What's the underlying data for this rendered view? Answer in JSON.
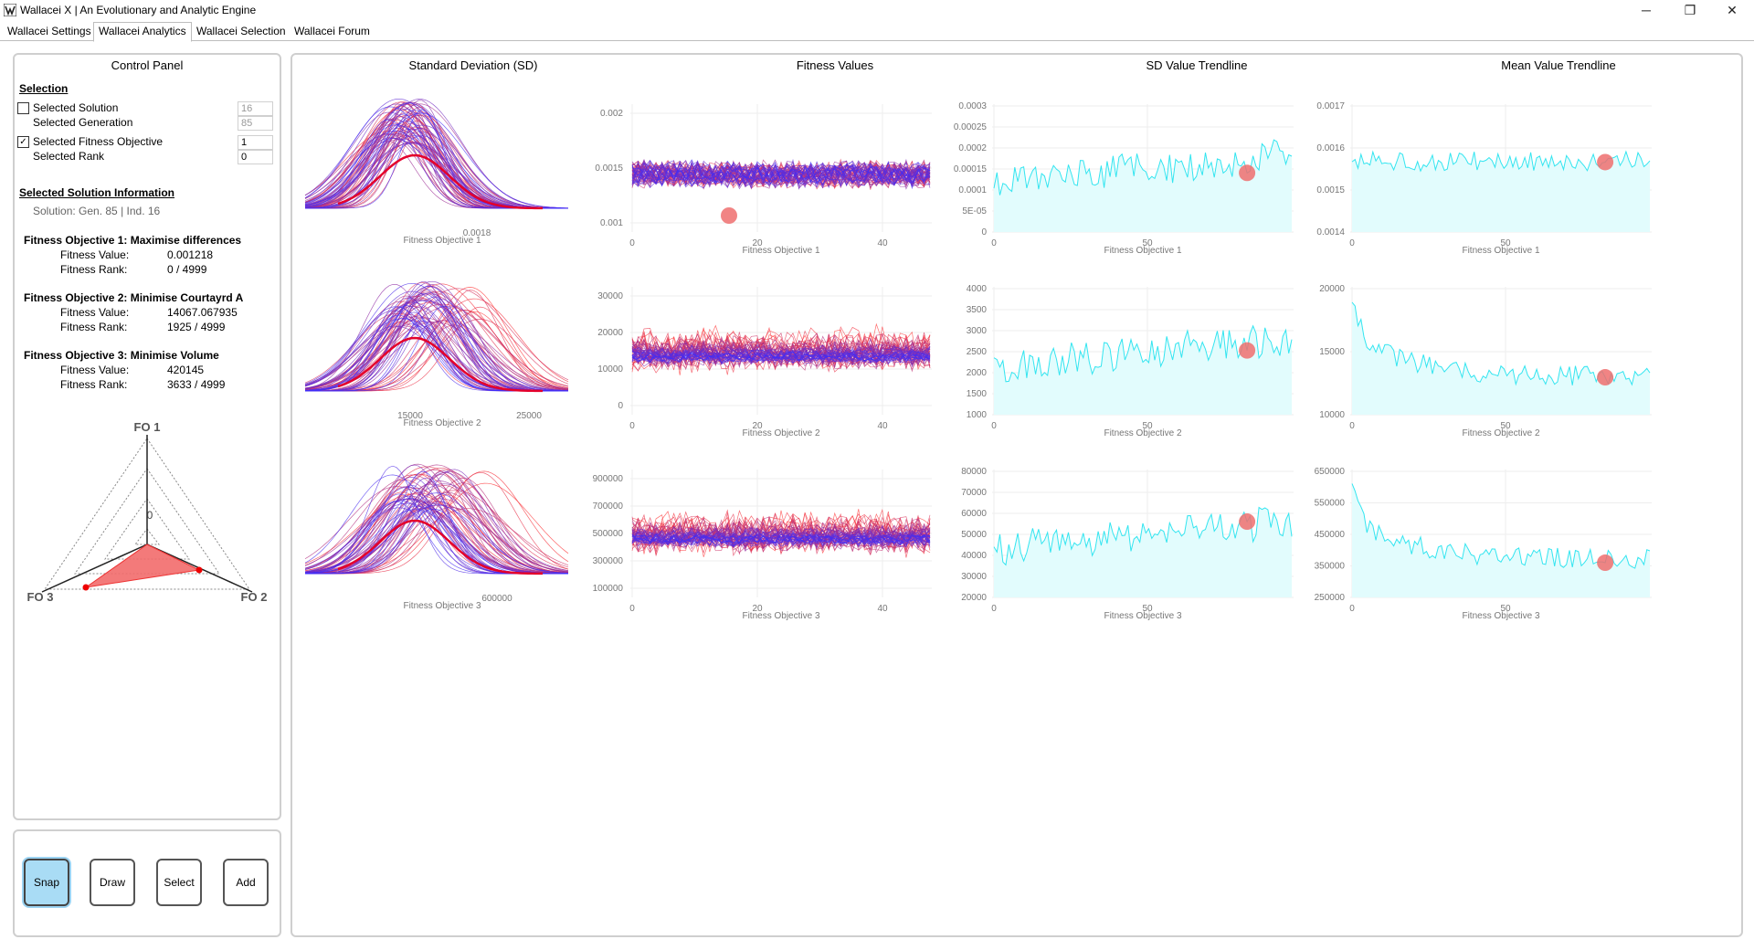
{
  "window": {
    "title": "Wallacei X  |  An Evolutionary and Analytic Engine",
    "minimize": "─",
    "restore": "❐",
    "close": "✕"
  },
  "tabs": [
    {
      "label": "Wallacei Settings"
    },
    {
      "label": "Wallacei Analytics"
    },
    {
      "label": "Wallacei Selection"
    },
    {
      "label": "Wallacei Forum"
    }
  ],
  "control_panel": {
    "title": "Control Panel",
    "selection_heading": "Selection",
    "selected_solution_label": "Selected Solution",
    "selected_solution_value": "16",
    "selected_solution_checked": false,
    "selected_generation_label": "Selected Generation",
    "selected_generation_value": "85",
    "selected_fitness_objective_label": "Selected Fitness Objective",
    "selected_fitness_objective_value": "1",
    "selected_fitness_objective_checked": true,
    "selected_rank_label": "Selected Rank",
    "selected_rank_value": "0",
    "info_heading": "Selected Solution Information",
    "solution_text": "Solution: Gen. 85 | Ind. 16",
    "objectives": [
      {
        "heading": "Fitness Objective 1:  Maximise differences",
        "value_label": "Fitness Value:",
        "value": "0.001218",
        "rank_label": "Fitness Rank:",
        "rank": "0 / 4999"
      },
      {
        "heading": "Fitness Objective 2:  Minimise Courtayrd A",
        "value_label": "Fitness Value:",
        "value": "14067.067935",
        "rank_label": "Fitness Rank:",
        "rank": "1925 / 4999"
      },
      {
        "heading": "Fitness Objective 3:  Minimise Volume",
        "value_label": "Fitness Value:",
        "value": "420145",
        "rank_label": "Fitness Rank:",
        "rank": "3633 / 4999"
      }
    ],
    "radar": {
      "axis_labels": [
        "FO 1",
        "FO 2",
        "FO 3"
      ],
      "center_label": "0",
      "fill_color": "#f26b6b"
    }
  },
  "tools": [
    {
      "label": "Snap",
      "active": true
    },
    {
      "label": "Draw",
      "active": false
    },
    {
      "label": "Select",
      "active": false
    },
    {
      "label": "Add",
      "active": false
    }
  ],
  "analytics": {
    "column_titles": [
      "Standard Deviation (SD)",
      "Fitness Values",
      "SD Value Trendline",
      "Mean Value Trendline"
    ],
    "colors": {
      "early": "#ff3030",
      "late": "#3a2dff",
      "trend_line": "#33e5f0",
      "trend_fill": "#e2fcfd",
      "marker": "#ef6f6f"
    },
    "rows": [
      {
        "objective_label": "Fitness Objective 1",
        "sd_ticks": [
          "0.0018"
        ],
        "fitness_y_ticks": [
          "0.002",
          "0.0015",
          "0.001"
        ],
        "fitness_x_ticks": [
          "0",
          "20",
          "40"
        ],
        "sd_trend_y_ticks": [
          "0.0003",
          "0.00025",
          "0.0002",
          "0.00015",
          "0.0001",
          "5E-05",
          "0"
        ],
        "sd_trend_x_ticks": [
          "0",
          "50"
        ],
        "mean_trend_y_ticks": [
          "0.0017",
          "0.0016",
          "0.0015",
          "0.0014"
        ],
        "mean_trend_x_ticks": [
          "0",
          "50"
        ]
      },
      {
        "objective_label": "Fitness Objective 2",
        "sd_ticks": [
          "15000",
          "25000"
        ],
        "fitness_y_ticks": [
          "30000",
          "20000",
          "10000",
          "0"
        ],
        "fitness_x_ticks": [
          "0",
          "20",
          "40"
        ],
        "sd_trend_y_ticks": [
          "4000",
          "3500",
          "3000",
          "2500",
          "2000",
          "1500",
          "1000"
        ],
        "sd_trend_x_ticks": [
          "0",
          "50"
        ],
        "mean_trend_y_ticks": [
          "20000",
          "15000",
          "10000"
        ],
        "mean_trend_x_ticks": [
          "0",
          "50"
        ]
      },
      {
        "objective_label": "Fitness Objective 3",
        "sd_ticks": [
          "600000"
        ],
        "fitness_y_ticks": [
          "900000",
          "700000",
          "500000",
          "300000",
          "100000"
        ],
        "fitness_x_ticks": [
          "0",
          "20",
          "40"
        ],
        "sd_trend_y_ticks": [
          "80000",
          "70000",
          "60000",
          "50000",
          "40000",
          "30000",
          "20000"
        ],
        "sd_trend_x_ticks": [
          "0",
          "50"
        ],
        "mean_trend_y_ticks": [
          "650000",
          "550000",
          "450000",
          "350000",
          "250000"
        ],
        "mean_trend_x_ticks": [
          "0",
          "50"
        ]
      }
    ]
  }
}
